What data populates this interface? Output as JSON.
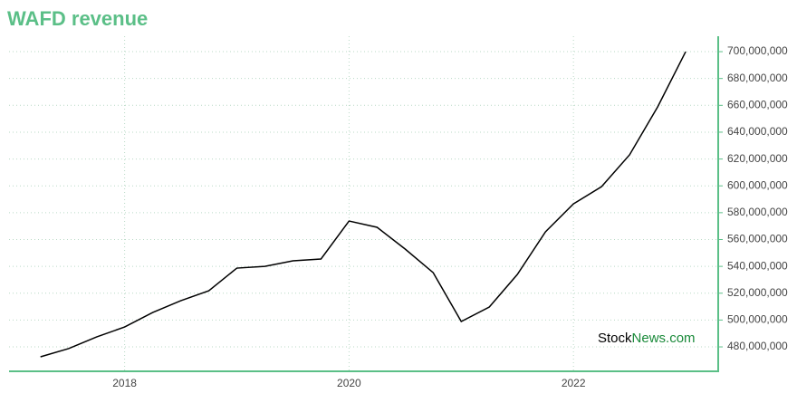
{
  "chart_data": {
    "type": "line",
    "title": "WAFD revenue",
    "x": [
      2017.25,
      2017.5,
      2017.75,
      2018,
      2018.25,
      2018.5,
      2018.75,
      2019,
      2019.25,
      2019.5,
      2019.75,
      2020,
      2020.25,
      2020.5,
      2020.75,
      2021,
      2021.25,
      2021.5,
      2021.75,
      2022,
      2022.25,
      2022.5,
      2022.75,
      2023
    ],
    "series": [
      {
        "name": "revenue",
        "color": "#000000",
        "values": [
          472600000,
          478700000,
          487400000,
          494800000,
          505600000,
          514400000,
          521800000,
          538700000,
          540000000,
          544100000,
          545500000,
          573800000,
          569100000,
          552900000,
          535300000,
          498900000,
          509700000,
          534000000,
          565700000,
          586600000,
          599400000,
          623100000,
          658800000,
          700000000
        ]
      }
    ],
    "xlim": [
      2016.97,
      2023.29
    ],
    "xticks": [
      2018,
      2020,
      2022
    ],
    "ylim": [
      461800000,
      711500000
    ],
    "yticks": [
      {
        "value": 480000000,
        "label": "480,000,000"
      },
      {
        "value": 500000000,
        "label": "500,000,000"
      },
      {
        "value": 520000000,
        "label": "520,000,000"
      },
      {
        "value": 540000000,
        "label": "540,000,000"
      },
      {
        "value": 560000000,
        "label": "560,000,000"
      },
      {
        "value": 580000000,
        "label": "580,000,000"
      },
      {
        "value": 600000000,
        "label": "600,000,000"
      },
      {
        "value": 620000000,
        "label": "620,000,000"
      },
      {
        "value": 640000000,
        "label": "640,000,000"
      },
      {
        "value": 660000000,
        "label": "660,000,000"
      },
      {
        "value": 680000000,
        "label": "680,000,000"
      },
      {
        "value": 700000000,
        "label": "700,000,000"
      }
    ],
    "grid": true,
    "axis_color": "#5bbf87",
    "watermark_parts": [
      "Stock",
      "News.com"
    ]
  }
}
